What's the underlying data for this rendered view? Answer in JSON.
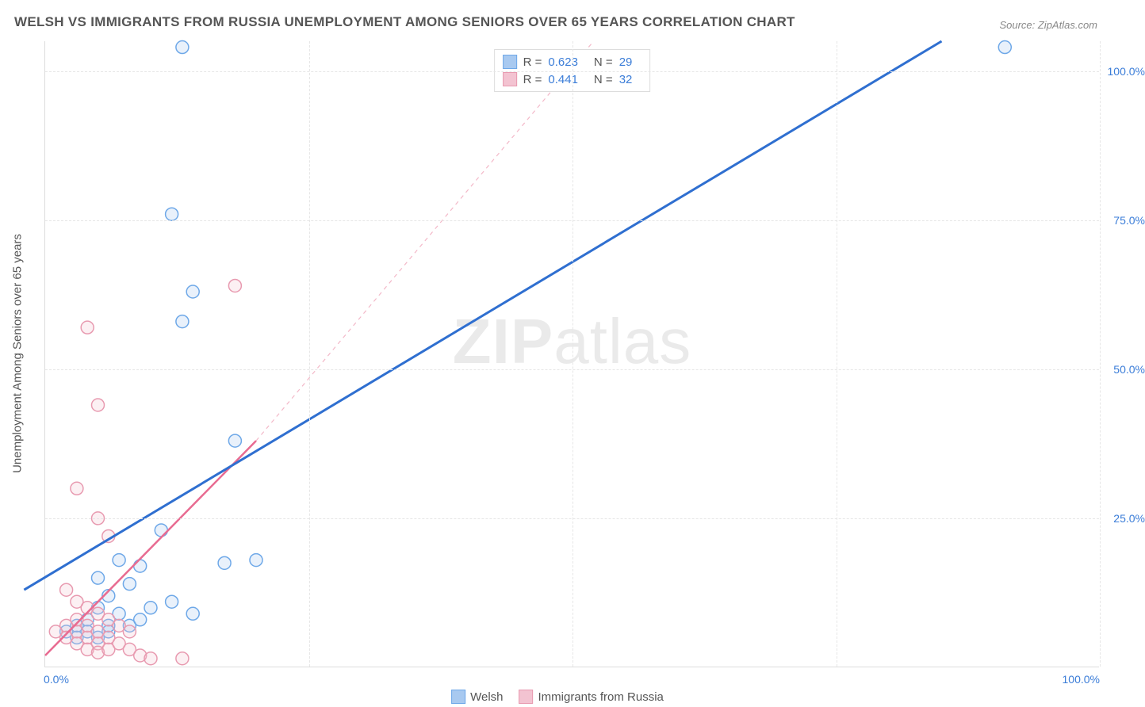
{
  "title": "WELSH VS IMMIGRANTS FROM RUSSIA UNEMPLOYMENT AMONG SENIORS OVER 65 YEARS CORRELATION CHART",
  "source_label": "Source: ZipAtlas.com",
  "watermark_bold": "ZIP",
  "watermark_light": "atlas",
  "y_axis_title": "Unemployment Among Seniors over 65 years",
  "chart": {
    "type": "scatter",
    "xlim": [
      0,
      100
    ],
    "ylim": [
      0,
      105
    ],
    "xtick_labels": [
      "0.0%",
      "100.0%"
    ],
    "ytick_values": [
      25,
      50,
      75,
      100
    ],
    "ytick_labels": [
      "25.0%",
      "50.0%",
      "75.0%",
      "100.0%"
    ],
    "x_gridlines": [
      25,
      50,
      75,
      100
    ],
    "grid_color": "#e6e6e6",
    "background_color": "#ffffff",
    "marker_radius": 8,
    "marker_stroke_width": 1.5,
    "marker_fill_opacity": 0.25,
    "series": [
      {
        "name": "Welsh",
        "color_stroke": "#6ea8e8",
        "color_fill": "#a8c9f0",
        "points": [
          [
            13,
            104
          ],
          [
            91,
            104
          ],
          [
            12,
            76
          ],
          [
            14,
            63
          ],
          [
            13,
            58
          ],
          [
            18,
            38
          ],
          [
            11,
            23
          ],
          [
            6,
            12
          ],
          [
            7,
            18
          ],
          [
            9,
            17
          ],
          [
            17,
            17.5
          ],
          [
            20,
            18
          ],
          [
            14,
            9
          ],
          [
            8,
            14
          ],
          [
            5,
            15
          ],
          [
            3,
            7
          ],
          [
            4,
            8
          ],
          [
            5,
            10
          ],
          [
            6,
            6
          ],
          [
            7,
            9
          ],
          [
            2,
            6
          ],
          [
            3,
            5
          ],
          [
            4,
            6
          ],
          [
            5,
            5
          ],
          [
            6,
            7
          ],
          [
            8,
            7
          ],
          [
            9,
            8
          ],
          [
            10,
            10
          ],
          [
            12,
            11
          ]
        ],
        "trend": {
          "x1": -2,
          "y1": 13,
          "x2": 85,
          "y2": 105,
          "width": 3,
          "dash": ""
        }
      },
      {
        "name": "Immigrants from Russia",
        "color_stroke": "#e89ab0",
        "color_fill": "#f3c3d1",
        "points": [
          [
            18,
            64
          ],
          [
            4,
            57
          ],
          [
            5,
            44
          ],
          [
            3,
            30
          ],
          [
            5,
            25
          ],
          [
            6,
            22
          ],
          [
            2,
            13
          ],
          [
            3,
            11
          ],
          [
            4,
            10
          ],
          [
            5,
            9
          ],
          [
            6,
            8
          ],
          [
            7,
            7
          ],
          [
            8,
            6
          ],
          [
            2,
            7
          ],
          [
            3,
            6
          ],
          [
            4,
            5
          ],
          [
            5,
            4
          ],
          [
            1,
            6
          ],
          [
            2,
            5
          ],
          [
            3,
            4
          ],
          [
            4,
            3
          ],
          [
            5,
            2.5
          ],
          [
            6,
            3
          ],
          [
            7,
            4
          ],
          [
            8,
            3
          ],
          [
            9,
            2
          ],
          [
            10,
            1.5
          ],
          [
            13,
            1.5
          ],
          [
            3,
            8
          ],
          [
            4,
            7
          ],
          [
            5,
            6
          ],
          [
            6,
            5
          ]
        ],
        "trend_solid": {
          "x1": 0,
          "y1": 2,
          "x2": 20,
          "y2": 38,
          "width": 2.5
        },
        "trend_dash": {
          "x1": 20,
          "y1": 38,
          "x2": 52,
          "y2": 105,
          "width": 1.2,
          "dash": "5,5"
        }
      }
    ],
    "legend_top": [
      {
        "swatch_fill": "#a8c9f0",
        "swatch_stroke": "#6ea8e8",
        "r_label": "R =",
        "r_value": "0.623",
        "n_label": "N =",
        "n_value": "29"
      },
      {
        "swatch_fill": "#f3c3d1",
        "swatch_stroke": "#e89ab0",
        "r_label": "R =",
        "r_value": "0.441",
        "n_label": "N =",
        "n_value": "32"
      }
    ],
    "legend_bottom": [
      {
        "swatch_fill": "#a8c9f0",
        "swatch_stroke": "#6ea8e8",
        "label": "Welsh"
      },
      {
        "swatch_fill": "#f3c3d1",
        "swatch_stroke": "#e89ab0",
        "label": "Immigrants from Russia"
      }
    ]
  }
}
